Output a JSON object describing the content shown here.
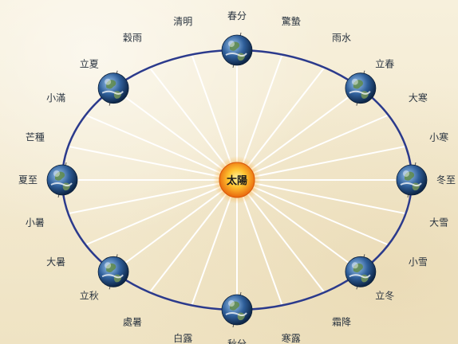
{
  "sun": {
    "label": "太陽"
  },
  "earths": [
    {
      "name": "spring-equinox"
    },
    {
      "name": "beginning-of-spring"
    },
    {
      "name": "winter-solstice"
    },
    {
      "name": "beginning-of-winter"
    },
    {
      "name": "autumn-equinox"
    },
    {
      "name": "beginning-of-autumn"
    },
    {
      "name": "summer-solstice"
    },
    {
      "name": "beginning-of-summer"
    }
  ],
  "solar_terms": [
    {
      "label": "春分"
    },
    {
      "label": "驚蟄"
    },
    {
      "label": "雨水"
    },
    {
      "label": "立春"
    },
    {
      "label": "大寒"
    },
    {
      "label": "小寒"
    },
    {
      "label": "冬至"
    },
    {
      "label": "大雪"
    },
    {
      "label": "小雪"
    },
    {
      "label": "立冬"
    },
    {
      "label": "霜降"
    },
    {
      "label": "寒露"
    },
    {
      "label": "秋分"
    },
    {
      "label": "白露"
    },
    {
      "label": "處暑"
    },
    {
      "label": "立秋"
    },
    {
      "label": "大暑"
    },
    {
      "label": "小暑"
    },
    {
      "label": "夏至"
    },
    {
      "label": "芒種"
    },
    {
      "label": "小滿"
    },
    {
      "label": "立夏"
    },
    {
      "label": "穀雨"
    },
    {
      "label": "清明"
    }
  ],
  "colors": {
    "orbit": "#2b3a8c",
    "spokes": "#ffffff",
    "sun_core": "#ffd54a",
    "sun_edge": "#e8650c"
  }
}
